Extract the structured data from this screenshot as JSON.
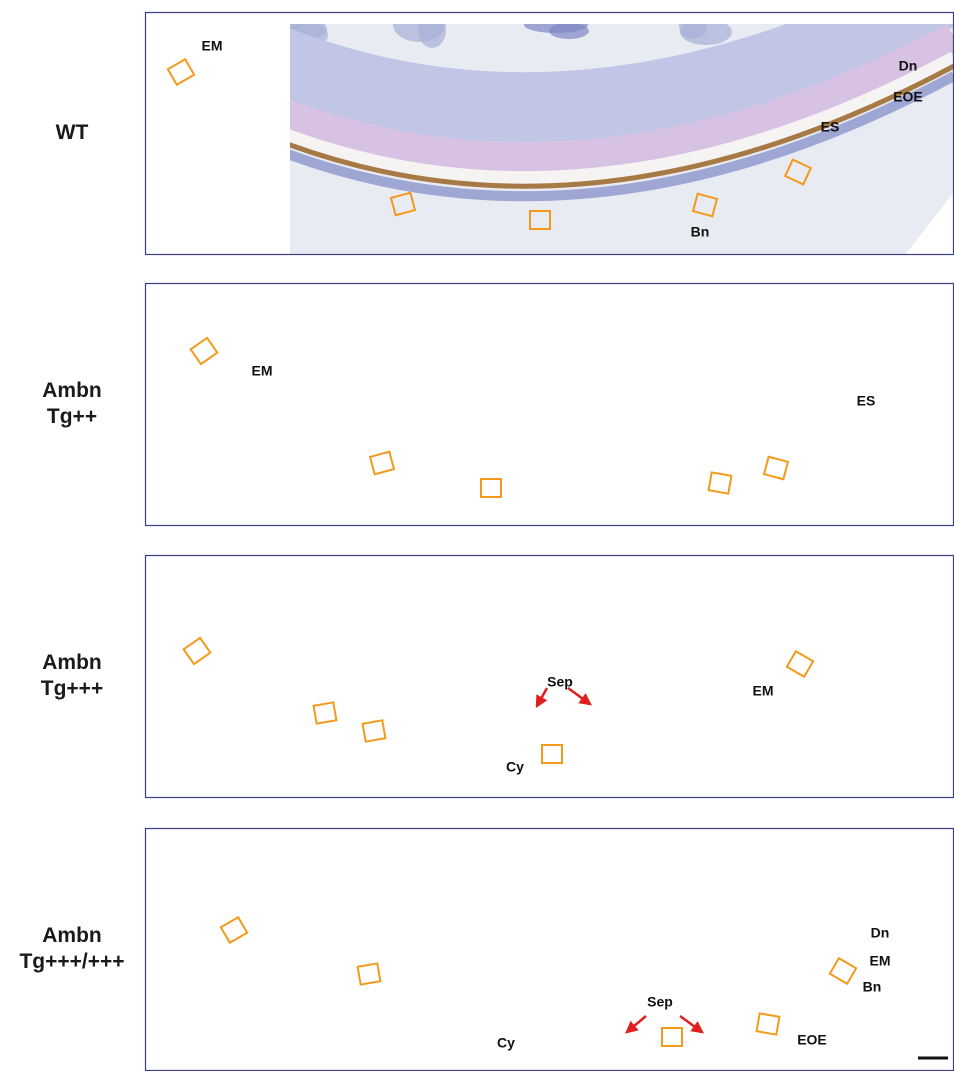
{
  "figure": {
    "panels": [
      {
        "label": [
          "WT"
        ],
        "annotations": [
          "EM",
          "Dn",
          "EOE",
          "ES",
          "Bn"
        ]
      },
      {
        "label": [
          "Ambn",
          "Tg++"
        ],
        "annotations": [
          "EM",
          "ES"
        ]
      },
      {
        "label": [
          "Ambn",
          "Tg+++"
        ],
        "annotations": [
          "EM",
          "Sep",
          "Cy"
        ]
      },
      {
        "label": [
          "Ambn",
          "Tg+++/+++"
        ],
        "annotations": [
          "Dn",
          "EM",
          "Bn",
          "Sep",
          "EOE",
          "Cy"
        ]
      }
    ]
  }
}
